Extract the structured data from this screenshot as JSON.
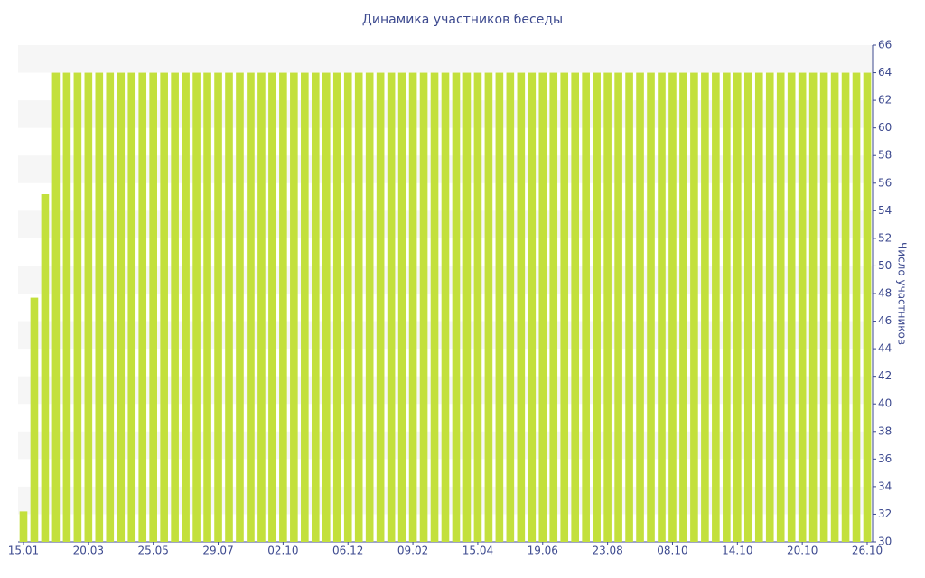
{
  "chart_data": {
    "type": "bar",
    "title": "Динамика участников беседы",
    "y_axis_label": "Число участников",
    "categories": [
      "15.01",
      null,
      null,
      null,
      null,
      null,
      "20.03",
      null,
      null,
      null,
      null,
      null,
      "25.05",
      null,
      null,
      null,
      null,
      null,
      "29.07",
      null,
      null,
      null,
      null,
      null,
      "02.10",
      null,
      null,
      null,
      null,
      null,
      "06.12",
      null,
      null,
      null,
      null,
      null,
      "09.02",
      null,
      null,
      null,
      null,
      null,
      "15.04",
      null,
      null,
      null,
      null,
      null,
      "19.06",
      null,
      null,
      null,
      null,
      null,
      "23.08",
      null,
      null,
      null,
      null,
      null,
      "08.10",
      null,
      null,
      null,
      null,
      null,
      "14.10",
      null,
      null,
      null,
      null,
      null,
      "20.10",
      null,
      null,
      null,
      null,
      null,
      "26.10"
    ],
    "values": [
      32.2,
      47.7,
      55.2,
      64,
      64,
      64,
      64,
      64,
      64,
      64,
      64,
      64,
      64,
      64,
      64,
      64,
      64,
      64,
      64,
      64,
      64,
      64,
      64,
      64,
      64,
      64,
      64,
      64,
      64,
      64,
      64,
      64,
      64,
      64,
      64,
      64,
      64,
      64,
      64,
      64,
      64,
      64,
      64,
      64,
      64,
      64,
      64,
      64,
      64,
      64,
      64,
      64,
      64,
      64,
      64,
      64,
      64,
      64,
      64,
      64,
      64,
      64,
      64,
      64,
      64,
      64,
      64,
      64,
      64,
      64,
      64,
      64,
      64,
      64,
      64,
      64,
      64,
      64,
      64
    ],
    "color": "#c3e03c",
    "ylim": [
      30,
      66
    ],
    "yticks": [
      30,
      32,
      34,
      36,
      38,
      40,
      42,
      44,
      46,
      48,
      50,
      52,
      54,
      56,
      58,
      60,
      62,
      64,
      66
    ],
    "y_axis_side": "right",
    "grid": true
  }
}
